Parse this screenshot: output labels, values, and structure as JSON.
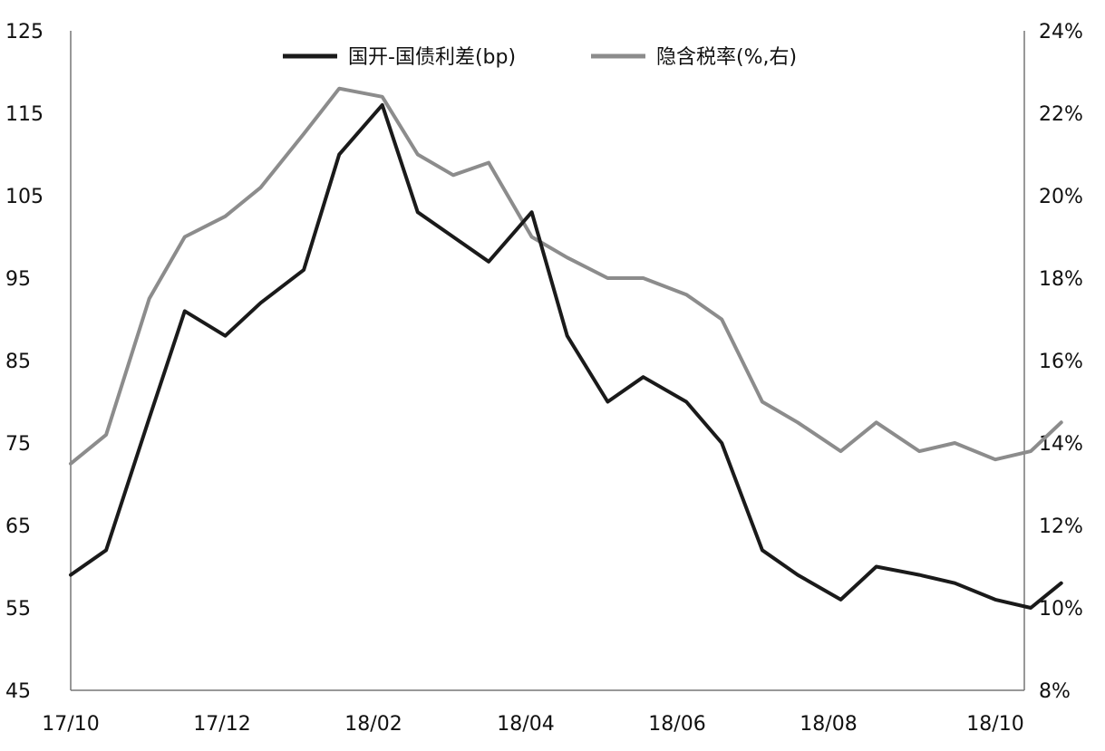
{
  "chart_data": {
    "type": "line",
    "x_ticks": [
      "17/10",
      "17/12",
      "18/02",
      "18/04",
      "18/06",
      "18/08",
      "18/10"
    ],
    "y_left_ticks": [
      "125",
      "115",
      "105",
      "95",
      "85",
      "75",
      "65",
      "55",
      "45"
    ],
    "y_right_ticks": [
      "24%",
      "22%",
      "20%",
      "18%",
      "16%",
      "14%",
      "12%",
      "10%",
      "8%"
    ],
    "y_left_range": [
      45,
      125
    ],
    "y_right_range": [
      8,
      24
    ],
    "grid": false,
    "legend_position": "top-center",
    "x_dates": [
      "2017-10-01",
      "2017-10-15",
      "2017-11-01",
      "2017-11-15",
      "2017-12-01",
      "2017-12-15",
      "2018-01-01",
      "2018-01-15",
      "2018-02-01",
      "2018-02-15",
      "2018-03-01",
      "2018-03-15",
      "2018-04-01",
      "2018-04-15",
      "2018-05-01",
      "2018-05-15",
      "2018-06-01",
      "2018-06-15",
      "2018-07-01",
      "2018-07-15",
      "2018-08-01",
      "2018-08-15",
      "2018-09-01",
      "2018-09-15",
      "2018-10-01",
      "2018-10-15",
      "2018-10-27"
    ],
    "series": [
      {
        "name": "国开-国债利差(bp)",
        "axis": "left",
        "color": "#1a1a1a",
        "values": [
          59,
          62,
          78,
          91,
          88,
          92,
          96,
          110,
          116,
          103,
          100,
          97,
          103,
          88,
          80,
          83,
          80,
          75,
          62,
          59,
          56,
          60,
          59,
          58,
          56,
          55,
          58
        ]
      },
      {
        "name": "隐含税率(%,右)",
        "axis": "right",
        "color": "#8c8c8c",
        "values": [
          13.5,
          14.2,
          17.5,
          19.0,
          19.5,
          20.2,
          21.5,
          22.6,
          22.4,
          21.0,
          20.5,
          20.8,
          19.0,
          18.5,
          18.0,
          18.0,
          17.6,
          17.0,
          15.0,
          14.5,
          13.8,
          14.5,
          13.8,
          14.0,
          13.6,
          13.8,
          14.5
        ]
      }
    ]
  }
}
